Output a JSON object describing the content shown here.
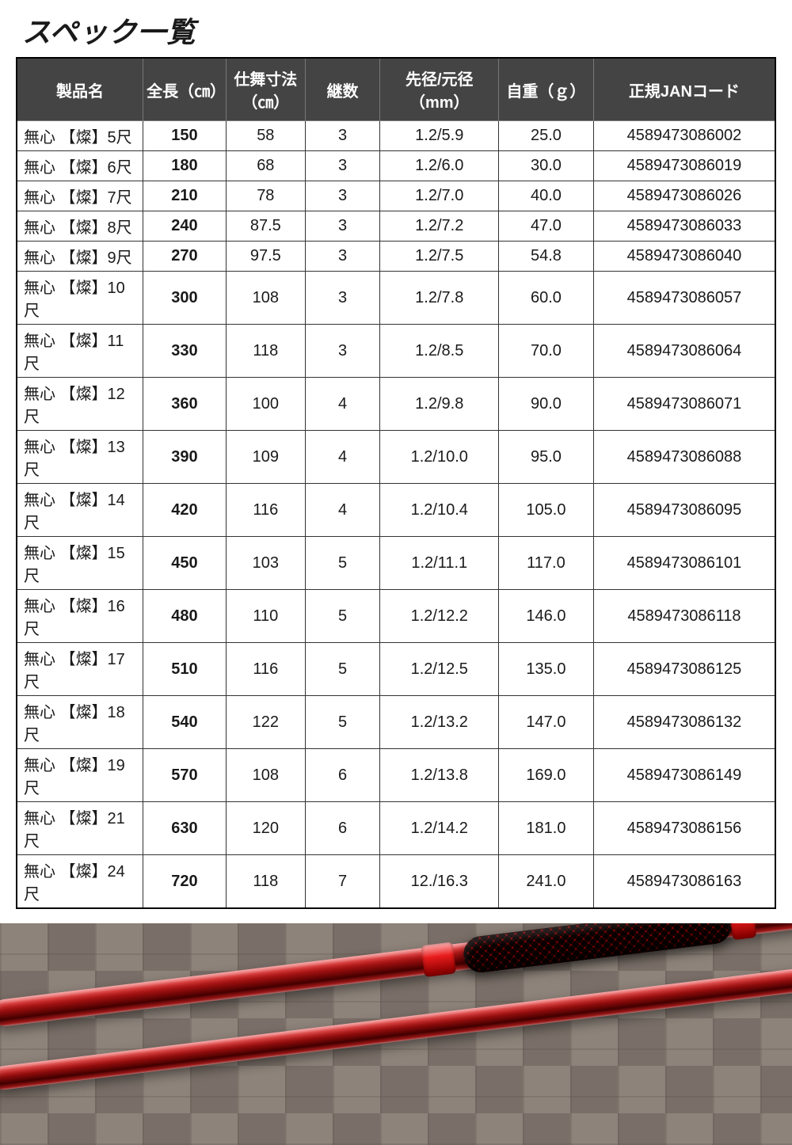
{
  "title": "スペック一覧",
  "table": {
    "columns": [
      "製品名",
      "全長（㎝）",
      "仕舞寸法（㎝）",
      "継数",
      "先径/元径（mm）",
      "自重（ｇ）",
      "正規JANコード"
    ],
    "rows": [
      {
        "name": "無心 【燦】5尺",
        "length": "150",
        "closed": "58",
        "sections": "3",
        "diameter": "1.2/5.9",
        "weight": "25.0",
        "jan": "4589473086002"
      },
      {
        "name": "無心 【燦】6尺",
        "length": "180",
        "closed": "68",
        "sections": "3",
        "diameter": "1.2/6.0",
        "weight": "30.0",
        "jan": "4589473086019"
      },
      {
        "name": "無心 【燦】7尺",
        "length": "210",
        "closed": "78",
        "sections": "3",
        "diameter": "1.2/7.0",
        "weight": "40.0",
        "jan": "4589473086026"
      },
      {
        "name": "無心 【燦】8尺",
        "length": "240",
        "closed": "87.5",
        "sections": "3",
        "diameter": "1.2/7.2",
        "weight": "47.0",
        "jan": "4589473086033"
      },
      {
        "name": "無心 【燦】9尺",
        "length": "270",
        "closed": "97.5",
        "sections": "3",
        "diameter": "1.2/7.5",
        "weight": "54.8",
        "jan": "4589473086040"
      },
      {
        "name": "無心 【燦】10尺",
        "length": "300",
        "closed": "108",
        "sections": "3",
        "diameter": "1.2/7.8",
        "weight": "60.0",
        "jan": "4589473086057"
      },
      {
        "name": "無心 【燦】11尺",
        "length": "330",
        "closed": "118",
        "sections": "3",
        "diameter": "1.2/8.5",
        "weight": "70.0",
        "jan": "4589473086064"
      },
      {
        "name": "無心 【燦】12尺",
        "length": "360",
        "closed": "100",
        "sections": "4",
        "diameter": "1.2/9.8",
        "weight": "90.0",
        "jan": "4589473086071"
      },
      {
        "name": "無心 【燦】13尺",
        "length": "390",
        "closed": "109",
        "sections": "4",
        "diameter": "1.2/10.0",
        "weight": "95.0",
        "jan": "4589473086088"
      },
      {
        "name": "無心 【燦】14尺",
        "length": "420",
        "closed": "116",
        "sections": "4",
        "diameter": "1.2/10.4",
        "weight": "105.0",
        "jan": "4589473086095"
      },
      {
        "name": "無心 【燦】15尺",
        "length": "450",
        "closed": "103",
        "sections": "5",
        "diameter": "1.2/11.1",
        "weight": "117.0",
        "jan": "4589473086101"
      },
      {
        "name": "無心 【燦】16尺",
        "length": "480",
        "closed": "110",
        "sections": "5",
        "diameter": "1.2/12.2",
        "weight": "146.0",
        "jan": "4589473086118"
      },
      {
        "name": "無心 【燦】17尺",
        "length": "510",
        "closed": "116",
        "sections": "5",
        "diameter": "1.2/12.5",
        "weight": "135.0",
        "jan": "4589473086125"
      },
      {
        "name": "無心 【燦】18尺",
        "length": "540",
        "closed": "122",
        "sections": "5",
        "diameter": "1.2/13.2",
        "weight": "147.0",
        "jan": "4589473086132"
      },
      {
        "name": "無心 【燦】19尺",
        "length": "570",
        "closed": "108",
        "sections": "6",
        "diameter": "1.2/13.8",
        "weight": "169.0",
        "jan": "4589473086149"
      },
      {
        "name": "無心 【燦】21尺",
        "length": "630",
        "closed": "120",
        "sections": "6",
        "diameter": "1.2/14.2",
        "weight": "181.0",
        "jan": "4589473086156"
      },
      {
        "name": "無心 【燦】24尺",
        "length": "720",
        "closed": "118",
        "sections": "7",
        "diameter": "12./16.3",
        "weight": "241.0",
        "jan": "4589473086163"
      }
    ],
    "header_bg": "#444444",
    "header_fg": "#ffffff",
    "cell_fg": "#1a1a1a",
    "border_color": "#333333",
    "font_size_header": 20,
    "font_size_cell": 20
  },
  "photo": {
    "rod_color_primary": "#d21e1e",
    "rod_color_dark": "#4a0000",
    "grip_crosshatch_dark": "#2a0000",
    "grip_crosshatch_red": "#c21a1a",
    "tile_bg": "#8d837a"
  }
}
